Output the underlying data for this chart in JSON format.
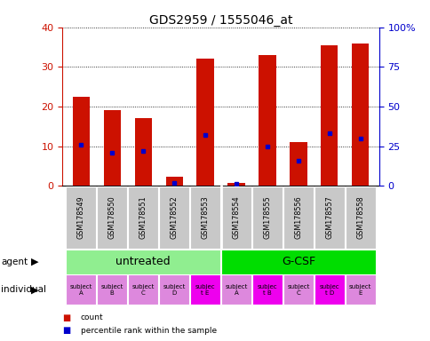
{
  "title": "GDS2959 / 1555046_at",
  "samples": [
    "GSM178549",
    "GSM178550",
    "GSM178551",
    "GSM178552",
    "GSM178553",
    "GSM178554",
    "GSM178555",
    "GSM178556",
    "GSM178557",
    "GSM178558"
  ],
  "counts": [
    22.5,
    19.0,
    17.0,
    2.2,
    32.2,
    0.7,
    33.0,
    11.0,
    35.5,
    36.0
  ],
  "percentile_ranks_pct": [
    26,
    21,
    22,
    2,
    32,
    1.5,
    25,
    16,
    33,
    30
  ],
  "ylim_left": [
    0,
    40
  ],
  "ylim_right": [
    0,
    100
  ],
  "yticks_left": [
    0,
    10,
    20,
    30,
    40
  ],
  "yticks_right": [
    0,
    25,
    50,
    75,
    100
  ],
  "ytick_labels_right": [
    "0",
    "25",
    "50",
    "75",
    "100%"
  ],
  "agent_groups": [
    {
      "label": "untreated",
      "start": 0,
      "end": 5,
      "color": "#90EE90"
    },
    {
      "label": "G-CSF",
      "start": 5,
      "end": 10,
      "color": "#00DD00"
    }
  ],
  "individuals": [
    "subject\nA",
    "subject\nB",
    "subject\nC",
    "subject\nD",
    "subjec\nt E",
    "subject\nA",
    "subjec\nt B",
    "subject\nC",
    "subjec\nt D",
    "subject\nE"
  ],
  "individual_colors": [
    "#DD88DD",
    "#DD88DD",
    "#DD88DD",
    "#DD88DD",
    "#EE00EE",
    "#DD88DD",
    "#EE00EE",
    "#DD88DD",
    "#EE00EE",
    "#DD88DD"
  ],
  "bar_color": "#CC1100",
  "dot_color": "#0000CC",
  "bar_width": 0.55,
  "grid_color": "#000000",
  "ytick_color_left": "#CC1100",
  "ytick_color_right": "#0000CC",
  "bg_xtick": "#C8C8C8",
  "legend_items": [
    {
      "color": "#CC1100",
      "label": "count"
    },
    {
      "color": "#0000CC",
      "label": "percentile rank within the sample"
    }
  ]
}
